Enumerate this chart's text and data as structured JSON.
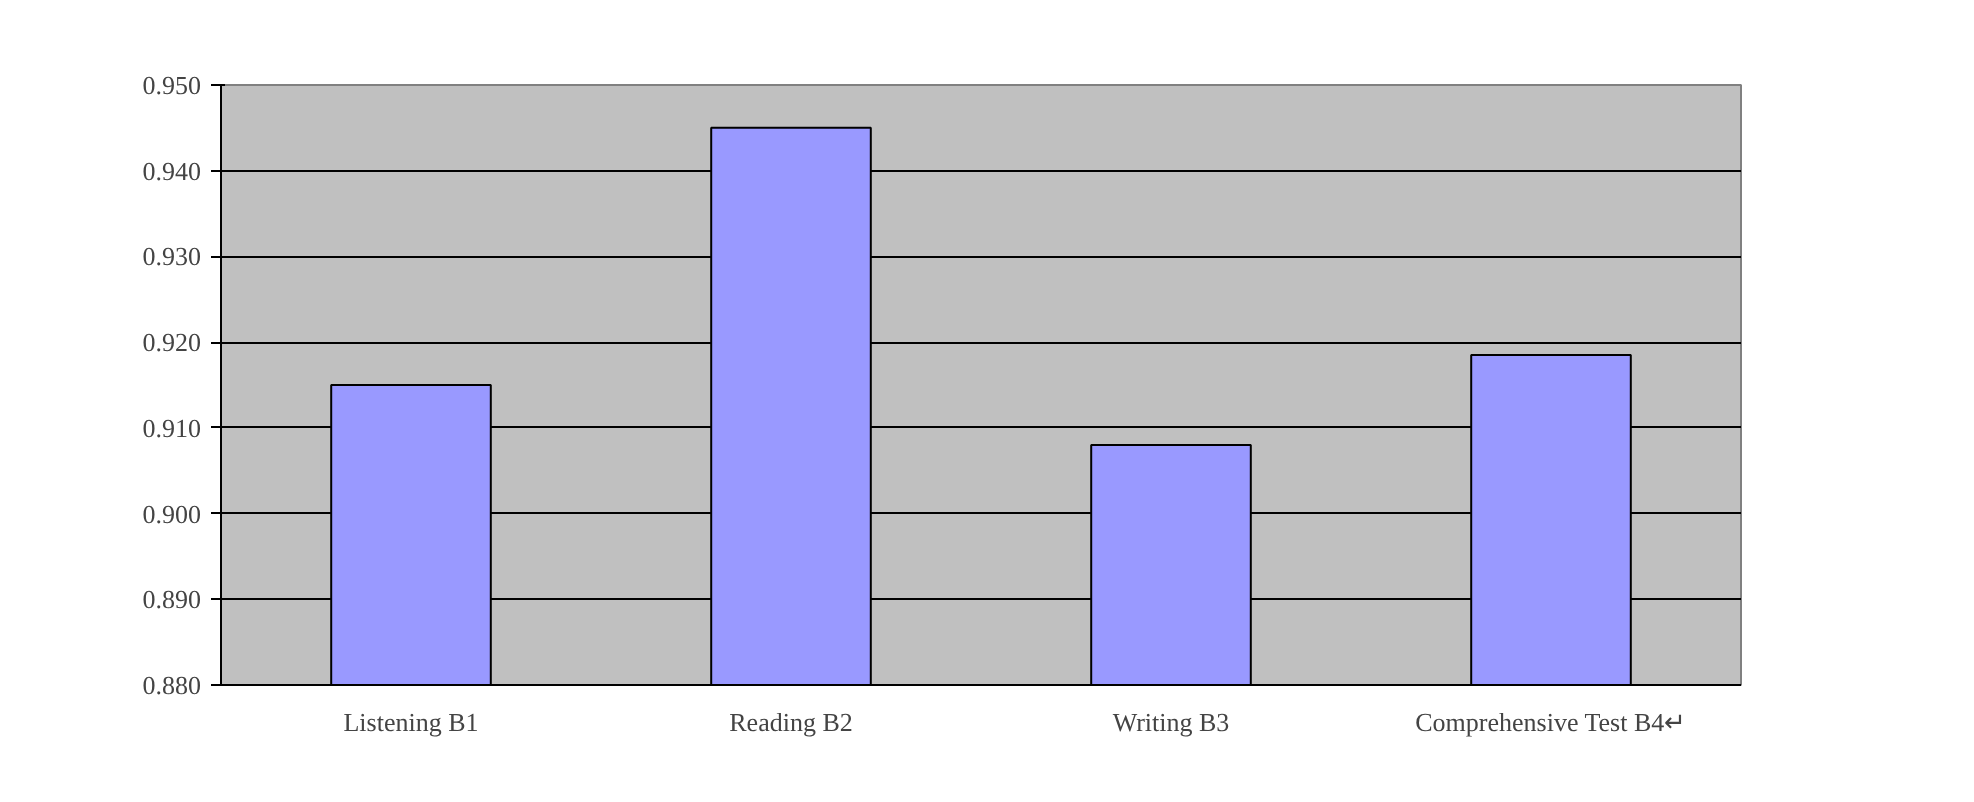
{
  "chart_data": {
    "type": "bar",
    "categories": [
      "Listening B1",
      "Reading B2",
      "Writing B3",
      "Comprehensive Test B4↵"
    ],
    "values": [
      0.915,
      0.945,
      0.908,
      0.9185
    ],
    "color": "#9999ff",
    "ylim": [
      0.88,
      0.95
    ],
    "yticks": [
      {
        "value": 0.88,
        "label": "0.880"
      },
      {
        "value": 0.89,
        "label": "0.890"
      },
      {
        "value": 0.9,
        "label": "0.900"
      },
      {
        "value": 0.91,
        "label": "0.910"
      },
      {
        "value": 0.92,
        "label": "0.920"
      },
      {
        "value": 0.93,
        "label": "0.930"
      },
      {
        "value": 0.94,
        "label": "0.940"
      },
      {
        "value": 0.95,
        "label": "0.950"
      }
    ],
    "grid": "y"
  }
}
